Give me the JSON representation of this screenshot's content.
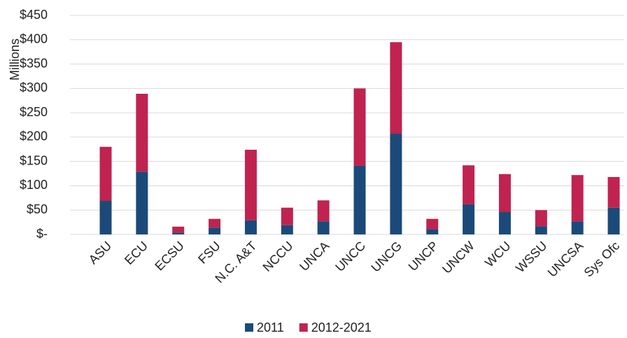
{
  "chart_data": {
    "type": "stacked_bar",
    "y_axis_label": "Millions",
    "categories": [
      "ASU",
      "ECU",
      "ECSU",
      "FSU",
      "N.C. A&T",
      "NCCU",
      "UNCA",
      "UNCC",
      "UNCG",
      "UNCP",
      "UNCW",
      "WCU",
      "WSSU",
      "UNCSA",
      "Sys Ofc"
    ],
    "series": [
      {
        "name": "2011",
        "color": "#1b4a7a",
        "values": [
          69,
          129,
          4,
          14,
          29,
          19,
          27,
          141,
          207,
          11,
          62,
          46,
          17,
          27,
          55
        ]
      },
      {
        "name": "2012-2021",
        "color": "#c0234f",
        "values": [
          111,
          160,
          12,
          18,
          145,
          36,
          43,
          159,
          188,
          21,
          80,
          78,
          33,
          95,
          63
        ]
      }
    ],
    "ylim": [
      0,
      450
    ],
    "yticks": [
      {
        "value": 0,
        "label": "$-"
      },
      {
        "value": 50,
        "label": "$50"
      },
      {
        "value": 100,
        "label": "$100"
      },
      {
        "value": 150,
        "label": "$150"
      },
      {
        "value": 200,
        "label": "$200"
      },
      {
        "value": 250,
        "label": "$250"
      },
      {
        "value": 300,
        "label": "$300"
      },
      {
        "value": 350,
        "label": "$350"
      },
      {
        "value": 400,
        "label": "$400"
      },
      {
        "value": 450,
        "label": "$450"
      }
    ],
    "grid": true,
    "legend": "bottom"
  }
}
